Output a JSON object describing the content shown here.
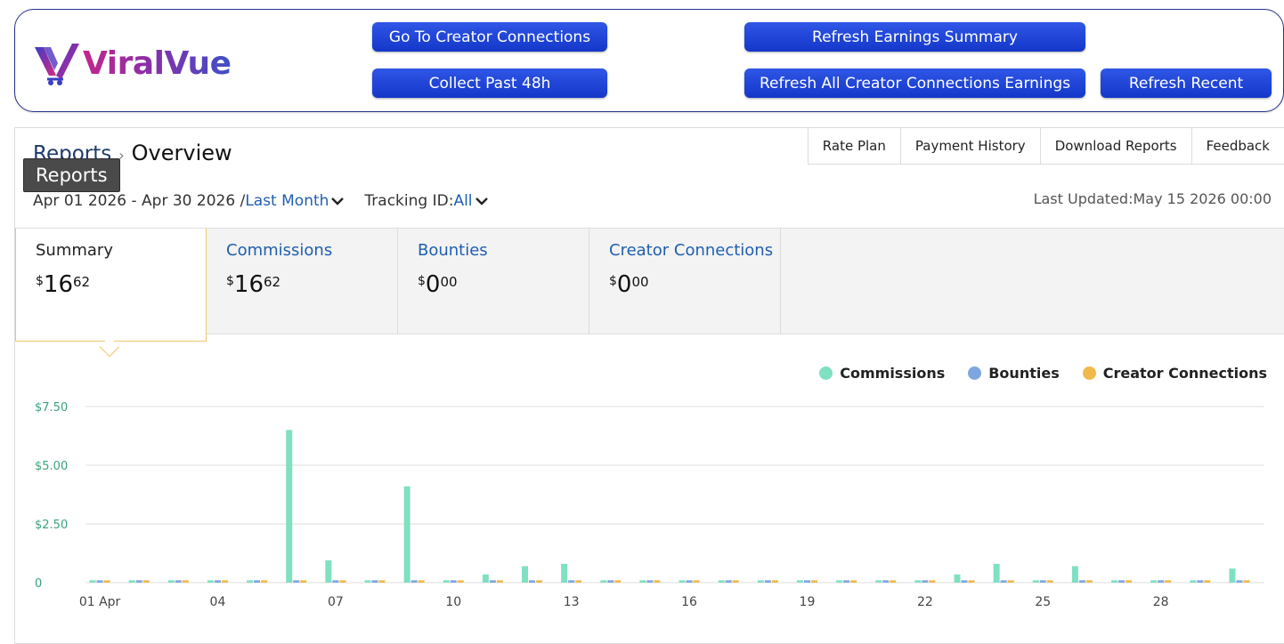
{
  "header": {
    "logo_text": "ViralVue",
    "buttons": {
      "go_to_creator": "Go To Creator Connections",
      "collect_past": "Collect Past 48h",
      "refresh_earnings": "Refresh Earnings Summary",
      "refresh_all": "Refresh All Creator Connections Earnings",
      "refresh_recent": "Refresh Recent"
    },
    "button_color": "#1f45d8"
  },
  "breadcrumb": {
    "root": "Reports",
    "separator": "›",
    "current": "Overview",
    "tooltip": "Reports"
  },
  "top_tabs": [
    "Rate Plan",
    "Payment History",
    "Download Reports",
    "Feedback"
  ],
  "filters": {
    "date_range": "Apr 01 2026 - Apr 30 2026 /",
    "period": "Last Month",
    "tracking_label": "Tracking ID:",
    "tracking_value": "All"
  },
  "last_updated": "Last Updated:May 15 2026 00:00",
  "cards": [
    {
      "title": "Summary",
      "currency": "$",
      "int": "16",
      "dec": "62",
      "active": true
    },
    {
      "title": "Commissions",
      "currency": "$",
      "int": "16",
      "dec": "62",
      "active": false
    },
    {
      "title": "Bounties",
      "currency": "$",
      "int": "0",
      "dec": "00",
      "active": false
    },
    {
      "title": "Creator Connections",
      "currency": "$",
      "int": "0",
      "dec": "00",
      "active": false
    }
  ],
  "chart_data": {
    "type": "bar",
    "x_tick_labels": [
      "01 Apr",
      "04",
      "07",
      "10",
      "13",
      "16",
      "19",
      "22",
      "25",
      "28"
    ],
    "y_tick_labels": [
      "0",
      "$2.50",
      "$5.00",
      "$7.50"
    ],
    "ylim": [
      0,
      7.5
    ],
    "grid": true,
    "legend_position": "top-right",
    "categories": [
      "01",
      "02",
      "03",
      "04",
      "05",
      "06",
      "07",
      "08",
      "09",
      "10",
      "11",
      "12",
      "13",
      "14",
      "15",
      "16",
      "17",
      "18",
      "19",
      "20",
      "21",
      "22",
      "23",
      "24",
      "25",
      "26",
      "27",
      "28",
      "29",
      "30"
    ],
    "series": [
      {
        "name": "Commissions",
        "color": "#7fe0c2",
        "values": [
          0.1,
          0.1,
          0.1,
          0.1,
          0.1,
          6.5,
          0.95,
          0.1,
          4.1,
          0.1,
          0.35,
          0.7,
          0.8,
          0.1,
          0.1,
          0.1,
          0.1,
          0.1,
          0.1,
          0.1,
          0.1,
          0.1,
          0.35,
          0.8,
          0.1,
          0.7,
          0.1,
          0.1,
          0.1,
          0.6
        ]
      },
      {
        "name": "Bounties",
        "color": "#7ea6e0",
        "values": [
          0.1,
          0.1,
          0.1,
          0.1,
          0.1,
          0.1,
          0.1,
          0.1,
          0.1,
          0.1,
          0.1,
          0.1,
          0.1,
          0.1,
          0.1,
          0.1,
          0.1,
          0.1,
          0.1,
          0.1,
          0.1,
          0.1,
          0.1,
          0.1,
          0.1,
          0.1,
          0.1,
          0.1,
          0.1,
          0.1
        ]
      },
      {
        "name": "Creator Connections",
        "color": "#f0b94a",
        "values": [
          0.1,
          0.1,
          0.1,
          0.1,
          0.1,
          0.1,
          0.1,
          0.1,
          0.1,
          0.1,
          0.1,
          0.1,
          0.1,
          0.1,
          0.1,
          0.1,
          0.1,
          0.1,
          0.1,
          0.1,
          0.1,
          0.1,
          0.1,
          0.1,
          0.1,
          0.1,
          0.1,
          0.1,
          0.1,
          0.1
        ]
      }
    ]
  }
}
